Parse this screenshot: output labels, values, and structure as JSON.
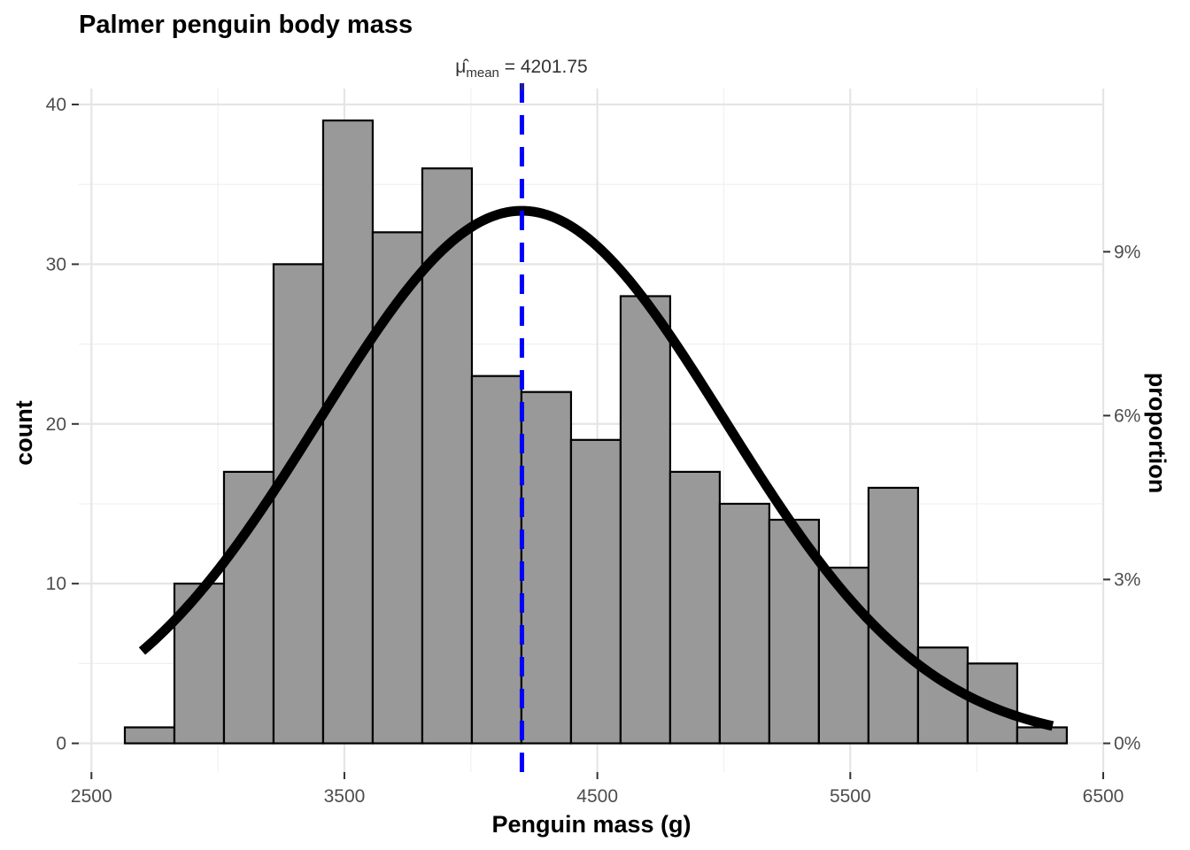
{
  "chart_data": {
    "type": "bar",
    "title": "Palmer penguin body mass",
    "xlabel": "Penguin mass (g)",
    "ylabel": "count",
    "y2label": "proportion",
    "xlim": [
      2450,
      6500
    ],
    "ylim": [
      -1.8,
      41
    ],
    "xticks": [
      2500,
      3500,
      4500,
      5500,
      6500
    ],
    "xtick_labels": [
      "2500",
      "3500",
      "4500",
      "5500",
      "6500"
    ],
    "yticks": [
      0,
      10,
      20,
      30,
      40
    ],
    "ytick_labels": [
      "0",
      "10",
      "20",
      "30",
      "40"
    ],
    "y2ticks": [
      0,
      0.03,
      0.06,
      0.09
    ],
    "y2tick_labels": [
      "0%",
      "3%",
      "6%",
      "9%"
    ],
    "total_n": 342,
    "bin_start": 2632,
    "bin_width": 196,
    "counts": [
      1,
      10,
      17,
      30,
      39,
      32,
      36,
      23,
      22,
      19,
      28,
      17,
      15,
      14,
      11,
      16,
      6,
      5,
      1
    ],
    "grid": true,
    "mean": {
      "value": 4201.75,
      "label_main": "μ̂",
      "label_sub": "mean",
      "label_rest": " = 4201.75",
      "color": "#0000ff"
    },
    "normal_curve": {
      "mean": 4201.75,
      "sd": 801.95,
      "x_range": [
        2700,
        6300
      ],
      "color": "#000000"
    },
    "bar_fill": "#999999",
    "bar_stroke": "#000000"
  }
}
